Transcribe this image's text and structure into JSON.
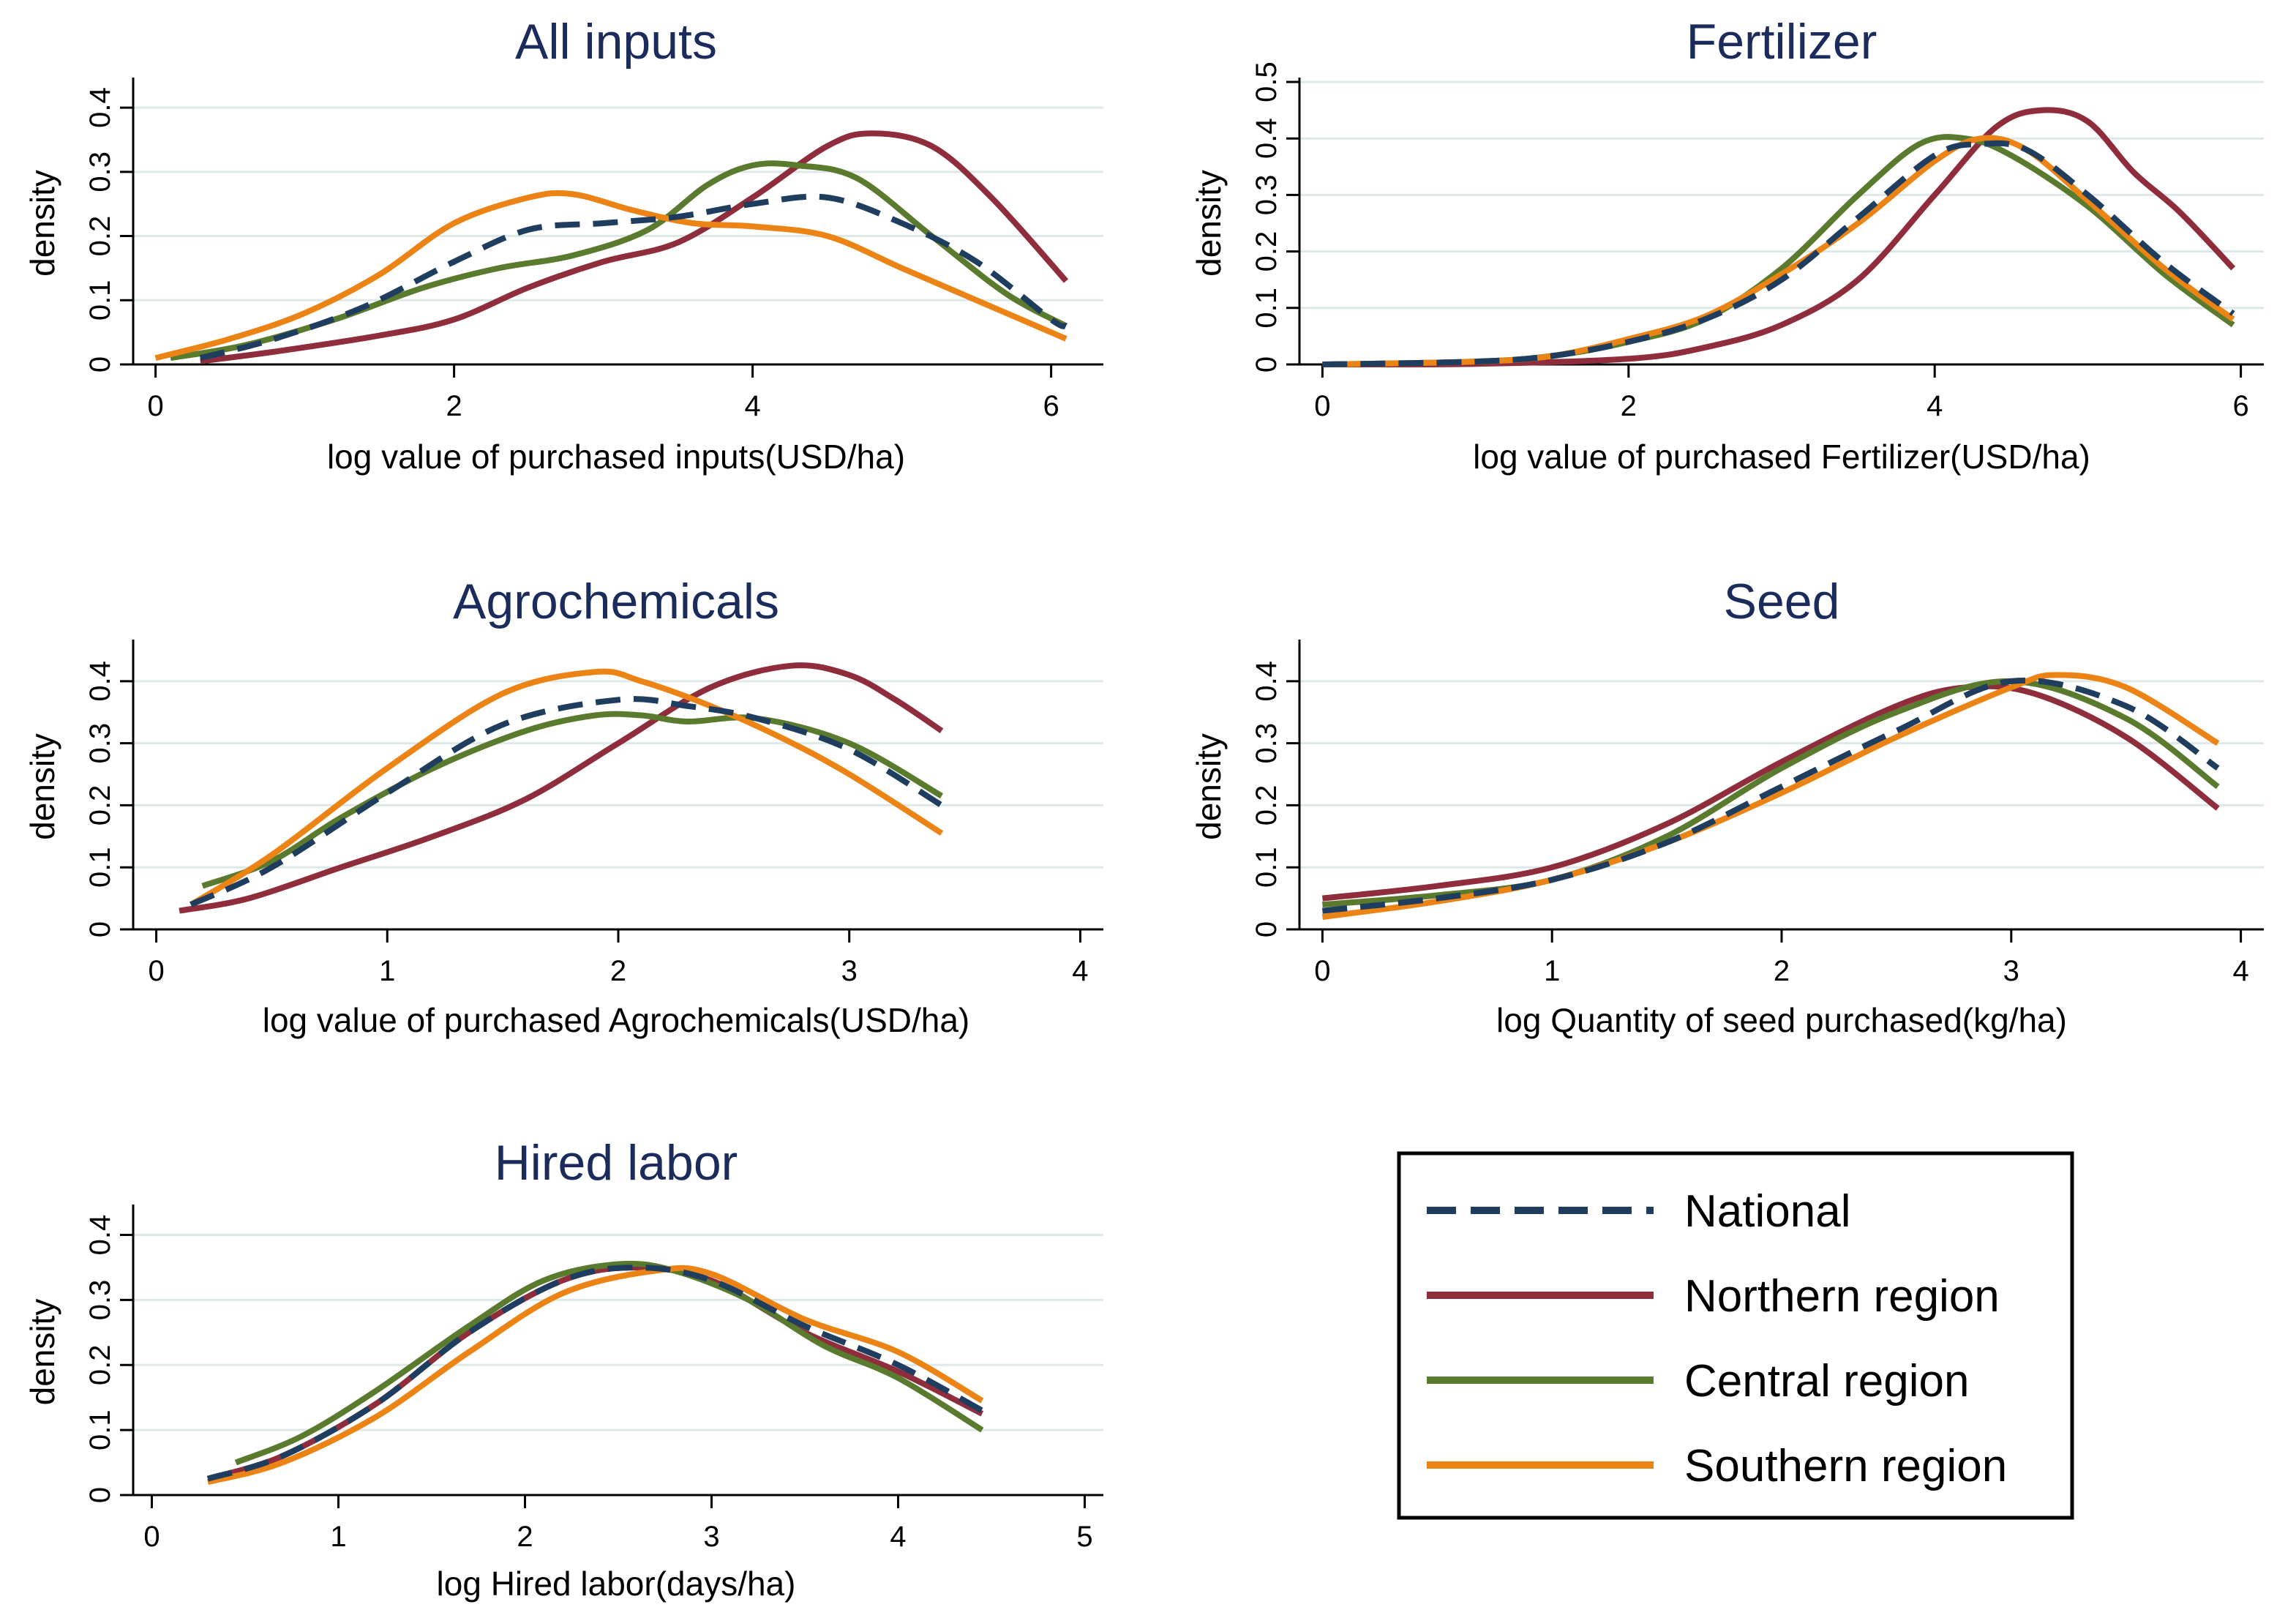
{
  "colors": {
    "National": "#1f3d5f",
    "Northern region": "#8f2d3d",
    "Central region": "#5a7a2e",
    "Southern region": "#eb8415",
    "title": "#1a2b5c",
    "grid": "#dde8e8"
  },
  "legend": {
    "items": [
      {
        "name": "National",
        "style": "dashed"
      },
      {
        "name": "Northern region",
        "style": "solid"
      },
      {
        "name": "Central region",
        "style": "solid"
      },
      {
        "name": "Southern region",
        "style": "solid"
      }
    ]
  },
  "chart_data": [
    {
      "type": "line",
      "title": "All inputs",
      "xlabel": "log value of purchased inputs(USD/ha)",
      "ylabel": "density",
      "xlim": [
        -0.15,
        6.35
      ],
      "ylim": [
        0,
        0.44
      ],
      "xticks": [
        0,
        2,
        4,
        6
      ],
      "yticks": [
        0,
        0.1,
        0.2,
        0.3,
        0.4
      ],
      "ytick_labels": [
        "0",
        "0.1",
        "0.2",
        "0.3",
        "0.4"
      ],
      "series": [
        {
          "name": "National",
          "x": [
            0.3,
            0.8,
            1.4,
            2.0,
            2.5,
            3.0,
            3.5,
            4.0,
            4.5,
            5.0,
            5.5,
            6.0,
            6.1
          ],
          "y": [
            0.01,
            0.04,
            0.09,
            0.16,
            0.21,
            0.22,
            0.23,
            0.25,
            0.26,
            0.22,
            0.16,
            0.07,
            0.06
          ]
        },
        {
          "name": "Northern region",
          "x": [
            0.3,
            0.8,
            1.5,
            2.0,
            2.5,
            3.0,
            3.5,
            4.0,
            4.5,
            4.8,
            5.2,
            5.6,
            6.1
          ],
          "y": [
            0.005,
            0.02,
            0.045,
            0.07,
            0.12,
            0.16,
            0.19,
            0.26,
            0.34,
            0.36,
            0.34,
            0.26,
            0.13
          ]
        },
        {
          "name": "Central region",
          "x": [
            0.1,
            0.6,
            1.2,
            1.8,
            2.3,
            2.8,
            3.3,
            3.7,
            4.0,
            4.3,
            4.7,
            5.2,
            5.7,
            6.1
          ],
          "y": [
            0.01,
            0.03,
            0.07,
            0.12,
            0.15,
            0.17,
            0.21,
            0.28,
            0.31,
            0.31,
            0.29,
            0.2,
            0.11,
            0.06
          ]
        },
        {
          "name": "Southern region",
          "x": [
            0.0,
            0.5,
            1.0,
            1.5,
            2.0,
            2.5,
            2.8,
            3.2,
            3.6,
            4.0,
            4.5,
            5.0,
            5.5,
            6.1
          ],
          "y": [
            0.01,
            0.04,
            0.08,
            0.14,
            0.22,
            0.26,
            0.265,
            0.24,
            0.22,
            0.215,
            0.2,
            0.15,
            0.1,
            0.04
          ]
        }
      ]
    },
    {
      "type": "line",
      "title": "Fertilizer",
      "xlabel": "log value of purchased Fertilizer(USD/ha)",
      "ylabel": "density",
      "xlim": [
        -0.15,
        6.15
      ],
      "ylim": [
        0,
        0.5
      ],
      "xticks": [
        0,
        2,
        4,
        6
      ],
      "yticks": [
        0,
        0.1,
        0.2,
        0.3,
        0.4,
        0.5
      ],
      "ytick_labels": [
        "0",
        "0.1",
        "0.2",
        "0.3",
        "0.4",
        "0.5"
      ],
      "series": [
        {
          "name": "National",
          "x": [
            0.0,
            1.0,
            1.5,
            2.0,
            2.5,
            3.0,
            3.5,
            4.0,
            4.3,
            4.6,
            5.0,
            5.5,
            5.95
          ],
          "y": [
            0.0,
            0.005,
            0.015,
            0.04,
            0.08,
            0.15,
            0.26,
            0.37,
            0.39,
            0.38,
            0.3,
            0.18,
            0.09
          ]
        },
        {
          "name": "Northern region",
          "x": [
            0.0,
            1.0,
            2.0,
            2.5,
            3.0,
            3.5,
            4.0,
            4.4,
            4.7,
            5.0,
            5.3,
            5.6,
            5.95
          ],
          "y": [
            0.0,
            0.001,
            0.01,
            0.03,
            0.07,
            0.15,
            0.3,
            0.42,
            0.45,
            0.43,
            0.34,
            0.27,
            0.17
          ]
        },
        {
          "name": "Central region",
          "x": [
            0.0,
            1.0,
            1.5,
            2.0,
            2.5,
            3.0,
            3.5,
            3.9,
            4.2,
            4.5,
            5.0,
            5.5,
            5.95
          ],
          "y": [
            0.0,
            0.005,
            0.015,
            0.04,
            0.08,
            0.17,
            0.3,
            0.39,
            0.4,
            0.37,
            0.28,
            0.16,
            0.07
          ]
        },
        {
          "name": "Southern region",
          "x": [
            0.0,
            1.0,
            1.5,
            2.0,
            2.5,
            3.0,
            3.5,
            4.0,
            4.3,
            4.6,
            5.0,
            5.5,
            5.95
          ],
          "y": [
            0.0,
            0.005,
            0.015,
            0.045,
            0.085,
            0.16,
            0.25,
            0.36,
            0.4,
            0.38,
            0.29,
            0.17,
            0.08
          ]
        }
      ]
    },
    {
      "type": "line",
      "title": "Agrochemicals",
      "xlabel": "log value of purchased Agrochemicals(USD/ha)",
      "ylabel": "density",
      "xlim": [
        -0.1,
        4.1
      ],
      "ylim": [
        0,
        0.46
      ],
      "xticks": [
        0,
        1,
        2,
        3,
        4
      ],
      "yticks": [
        0,
        0.1,
        0.2,
        0.3,
        0.4
      ],
      "ytick_labels": [
        "0",
        "0.1",
        "0.2",
        "0.3",
        "0.4"
      ],
      "series": [
        {
          "name": "National",
          "x": [
            0.15,
            0.5,
            1.0,
            1.5,
            2.0,
            2.3,
            2.6,
            3.0,
            3.4
          ],
          "y": [
            0.04,
            0.1,
            0.22,
            0.33,
            0.37,
            0.36,
            0.34,
            0.29,
            0.2
          ]
        },
        {
          "name": "Northern region",
          "x": [
            0.1,
            0.4,
            0.8,
            1.2,
            1.6,
            2.0,
            2.4,
            2.75,
            3.0,
            3.2,
            3.4
          ],
          "y": [
            0.03,
            0.05,
            0.1,
            0.15,
            0.21,
            0.3,
            0.39,
            0.425,
            0.41,
            0.37,
            0.32
          ]
        },
        {
          "name": "Central region",
          "x": [
            0.2,
            0.5,
            0.8,
            1.2,
            1.6,
            1.9,
            2.1,
            2.3,
            2.6,
            3.0,
            3.4
          ],
          "y": [
            0.07,
            0.11,
            0.18,
            0.26,
            0.32,
            0.345,
            0.345,
            0.335,
            0.34,
            0.3,
            0.215
          ]
        },
        {
          "name": "Southern region",
          "x": [
            0.15,
            0.5,
            1.0,
            1.5,
            1.9,
            2.1,
            2.4,
            2.7,
            3.0,
            3.4
          ],
          "y": [
            0.04,
            0.12,
            0.26,
            0.38,
            0.415,
            0.4,
            0.36,
            0.31,
            0.25,
            0.155
          ]
        }
      ]
    },
    {
      "type": "line",
      "title": "Seed",
      "xlabel": "log Quantity of seed purchased(kg/ha)",
      "ylabel": "density",
      "xlim": [
        -0.1,
        4.1
      ],
      "ylim": [
        0,
        0.46
      ],
      "xticks": [
        0,
        1,
        2,
        3,
        4
      ],
      "yticks": [
        0,
        0.1,
        0.2,
        0.3,
        0.4
      ],
      "ytick_labels": [
        "0",
        "0.1",
        "0.2",
        "0.3",
        "0.4"
      ],
      "series": [
        {
          "name": "National",
          "x": [
            0.0,
            0.5,
            1.0,
            1.5,
            2.0,
            2.5,
            3.0,
            3.5,
            3.9
          ],
          "y": [
            0.03,
            0.05,
            0.08,
            0.14,
            0.23,
            0.32,
            0.4,
            0.36,
            0.26
          ]
        },
        {
          "name": "Northern region",
          "x": [
            0.0,
            0.5,
            1.0,
            1.5,
            2.0,
            2.5,
            2.8,
            3.1,
            3.5,
            3.9
          ],
          "y": [
            0.05,
            0.07,
            0.1,
            0.17,
            0.27,
            0.36,
            0.39,
            0.38,
            0.31,
            0.195
          ]
        },
        {
          "name": "Central region",
          "x": [
            0.0,
            0.5,
            1.0,
            1.5,
            2.0,
            2.5,
            3.0,
            3.5,
            3.9
          ],
          "y": [
            0.04,
            0.055,
            0.08,
            0.15,
            0.26,
            0.35,
            0.4,
            0.34,
            0.23
          ]
        },
        {
          "name": "Southern region",
          "x": [
            0.0,
            0.5,
            1.0,
            1.5,
            2.0,
            2.5,
            3.0,
            3.2,
            3.5,
            3.9
          ],
          "y": [
            0.02,
            0.045,
            0.08,
            0.14,
            0.22,
            0.31,
            0.39,
            0.41,
            0.39,
            0.3
          ]
        }
      ]
    },
    {
      "type": "line",
      "title": "Hired labor",
      "xlabel": "log Hired labor(days/ha)",
      "ylabel": "density",
      "xlim": [
        -0.1,
        5.1
      ],
      "ylim": [
        0,
        0.44
      ],
      "xticks": [
        0,
        1,
        2,
        3,
        4,
        5
      ],
      "yticks": [
        0,
        0.1,
        0.2,
        0.3,
        0.4
      ],
      "ytick_labels": [
        "0",
        "0.1",
        "0.2",
        "0.3",
        "0.4"
      ],
      "series": [
        {
          "name": "National",
          "x": [
            0.3,
            0.7,
            1.2,
            1.7,
            2.2,
            2.6,
            3.0,
            3.5,
            4.0,
            4.45
          ],
          "y": [
            0.025,
            0.06,
            0.14,
            0.25,
            0.33,
            0.35,
            0.33,
            0.26,
            0.2,
            0.13
          ]
        },
        {
          "name": "Northern region",
          "x": [
            0.3,
            0.7,
            1.2,
            1.7,
            2.2,
            2.6,
            3.0,
            3.5,
            4.0,
            4.45
          ],
          "y": [
            0.025,
            0.06,
            0.14,
            0.25,
            0.33,
            0.35,
            0.33,
            0.25,
            0.19,
            0.125
          ]
        },
        {
          "name": "Central region",
          "x": [
            0.45,
            0.8,
            1.2,
            1.7,
            2.1,
            2.5,
            2.8,
            3.2,
            3.6,
            4.0,
            4.45
          ],
          "y": [
            0.05,
            0.09,
            0.16,
            0.26,
            0.33,
            0.355,
            0.345,
            0.3,
            0.23,
            0.18,
            0.1
          ]
        },
        {
          "name": "Southern region",
          "x": [
            0.3,
            0.7,
            1.2,
            1.7,
            2.2,
            2.7,
            3.0,
            3.5,
            4.0,
            4.45
          ],
          "y": [
            0.02,
            0.05,
            0.12,
            0.22,
            0.31,
            0.345,
            0.34,
            0.27,
            0.22,
            0.145
          ]
        }
      ]
    }
  ]
}
